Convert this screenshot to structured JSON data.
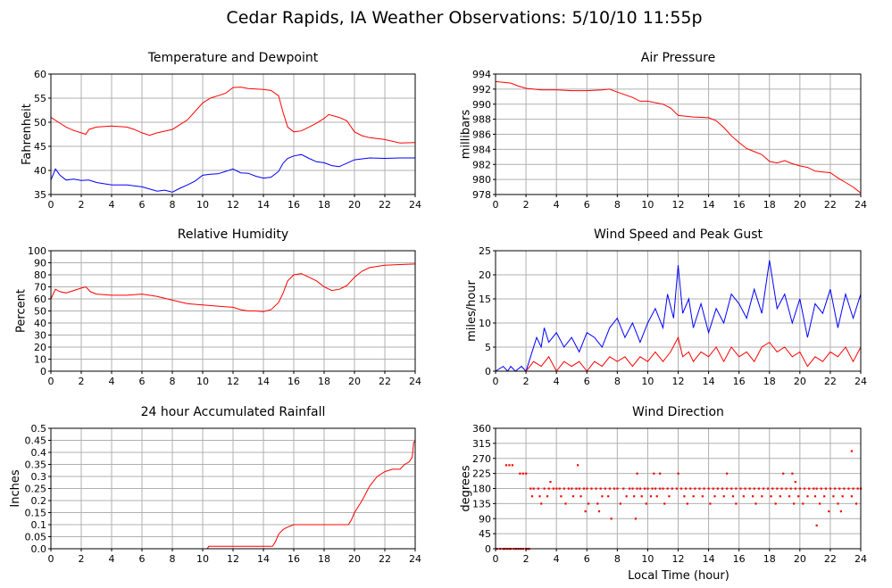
{
  "title": "Cedar Rapids, IA Weather Observations: 5/10/10 11:55p",
  "colors": {
    "red": "#ff0000",
    "blue": "#0000ff",
    "grid": "#b0b0b0",
    "frame": "#000000"
  },
  "chart_data": [
    {
      "type": "line",
      "title": "Temperature and Dewpoint",
      "xlabel": "",
      "ylabel": "Fahrenheit",
      "xlim": [
        0,
        24
      ],
      "ylim": [
        35,
        60
      ],
      "xticks": [
        0,
        2,
        4,
        6,
        8,
        10,
        12,
        14,
        16,
        18,
        20,
        22,
        24
      ],
      "yticks": [
        35,
        40,
        45,
        50,
        55,
        60
      ],
      "grid": true,
      "series": [
        {
          "color": "#ff0000",
          "x": [
            0,
            0.5,
            1,
            1.5,
            2,
            2.3,
            2.5,
            3,
            4,
            5,
            5.5,
            6,
            6.5,
            7,
            8,
            9,
            10,
            10.5,
            11,
            11.5,
            12,
            12.5,
            13,
            14,
            14.5,
            15,
            15.3,
            15.6,
            16,
            16.5,
            17,
            17.5,
            18,
            18.3,
            19,
            19.5,
            20,
            20.5,
            21,
            22,
            23,
            24
          ],
          "y": [
            51,
            50,
            49,
            48.3,
            47.8,
            47.5,
            48.5,
            49,
            49.2,
            49,
            48.5,
            47.8,
            47.3,
            47.8,
            48.5,
            50.5,
            54,
            55,
            55.5,
            56,
            57.2,
            57.3,
            57,
            56.8,
            56.6,
            55.5,
            52,
            49,
            48,
            48.2,
            49,
            49.8,
            50.8,
            51.6,
            51,
            50.3,
            48,
            47.2,
            46.8,
            46.4,
            45.7,
            45.8
          ]
        },
        {
          "color": "#0000ff",
          "x": [
            0,
            0.3,
            0.6,
            1,
            1.5,
            2,
            2.5,
            3,
            4,
            5,
            6,
            7,
            7.5,
            8,
            8.5,
            9,
            9.5,
            10,
            10.5,
            11,
            11.5,
            12,
            12.5,
            13,
            13.5,
            14,
            14.5,
            15,
            15.3,
            15.6,
            16,
            16.5,
            17,
            17.5,
            18,
            18.5,
            19,
            19.5,
            20,
            21,
            22,
            23,
            24
          ],
          "y": [
            38,
            40.3,
            39,
            38,
            38.2,
            37.9,
            38,
            37.5,
            37,
            37,
            36.6,
            35.7,
            35.9,
            35.5,
            36.3,
            37,
            37.8,
            39,
            39.2,
            39.3,
            39.8,
            40.3,
            39.5,
            39.4,
            38.8,
            38.4,
            38.6,
            39.8,
            41.5,
            42.5,
            43,
            43.3,
            42.5,
            41.8,
            41.6,
            41,
            40.8,
            41.5,
            42.2,
            42.6,
            42.5,
            42.6,
            42.6
          ]
        }
      ]
    },
    {
      "type": "line",
      "title": "Air Pressure",
      "xlabel": "",
      "ylabel": "millibars",
      "xlim": [
        0,
        24
      ],
      "ylim": [
        978,
        994
      ],
      "xticks": [
        0,
        2,
        4,
        6,
        8,
        10,
        12,
        14,
        16,
        18,
        20,
        22,
        24
      ],
      "yticks": [
        978,
        980,
        982,
        984,
        986,
        988,
        990,
        992,
        994
      ],
      "grid": true,
      "series": [
        {
          "color": "#ff0000",
          "x": [
            0,
            0.5,
            1,
            1.5,
            2,
            3,
            4,
            5,
            6,
            7,
            7.5,
            8,
            9,
            9.5,
            10,
            11,
            11.5,
            12,
            13,
            14,
            14.5,
            15,
            15.5,
            16,
            16.5,
            17,
            17.5,
            18,
            18.5,
            19,
            19.5,
            20,
            20.5,
            21,
            21.5,
            22,
            22.5,
            23,
            23.5,
            24
          ],
          "y": [
            993,
            992.9,
            992.8,
            992.4,
            992.1,
            991.9,
            991.9,
            991.8,
            991.8,
            991.9,
            992,
            991.6,
            990.9,
            990.4,
            990.4,
            990,
            989.5,
            988.5,
            988.3,
            988.2,
            987.8,
            986.9,
            985.8,
            984.9,
            984.1,
            983.7,
            983.3,
            982.4,
            982.2,
            982.5,
            982.1,
            981.8,
            981.6,
            981.1,
            981,
            980.9,
            980.2,
            979.6,
            979,
            978.2
          ]
        }
      ]
    },
    {
      "type": "line",
      "title": "Relative Humidity",
      "xlabel": "",
      "ylabel": "Percent",
      "xlim": [
        0,
        24
      ],
      "ylim": [
        0,
        100
      ],
      "xticks": [
        0,
        2,
        4,
        6,
        8,
        10,
        12,
        14,
        16,
        18,
        20,
        22,
        24
      ],
      "yticks": [
        0,
        10,
        20,
        30,
        40,
        50,
        60,
        70,
        80,
        90,
        100
      ],
      "grid": true,
      "series": [
        {
          "color": "#ff0000",
          "x": [
            0,
            0.3,
            0.6,
            1,
            1.5,
            2,
            2.3,
            2.6,
            3,
            4,
            5,
            6,
            6.5,
            7,
            8,
            9,
            10,
            11,
            12,
            12.5,
            13,
            13.5,
            14,
            14.5,
            15,
            15.3,
            15.6,
            16,
            16.5,
            17,
            17.5,
            18,
            18.5,
            19,
            19.5,
            20,
            20.5,
            21,
            22,
            23,
            24
          ],
          "y": [
            60,
            68,
            66,
            65,
            67,
            69,
            70,
            66,
            64,
            63,
            63,
            64,
            63,
            62,
            59,
            56,
            55,
            54,
            53,
            51,
            50,
            50,
            49.5,
            51,
            57,
            65,
            75,
            80,
            81,
            78,
            75,
            70,
            67,
            68,
            71,
            78,
            83,
            86,
            88,
            88.5,
            89
          ]
        }
      ]
    },
    {
      "type": "line",
      "title": "Wind Speed and Peak Gust",
      "xlabel": "",
      "ylabel": "miles/hour",
      "xlim": [
        0,
        24
      ],
      "ylim": [
        0,
        25
      ],
      "xticks": [
        0,
        2,
        4,
        6,
        8,
        10,
        12,
        14,
        16,
        18,
        20,
        22,
        24
      ],
      "yticks": [
        0,
        5,
        10,
        15,
        20,
        25
      ],
      "grid": true,
      "series": [
        {
          "color": "#0000ff",
          "x": [
            0,
            0.5,
            0.8,
            1,
            1.3,
            1.7,
            2,
            2.3,
            2.7,
            3,
            3.2,
            3.5,
            4,
            4.5,
            5,
            5.5,
            6,
            6.5,
            7,
            7.5,
            8,
            8.5,
            9,
            9.5,
            10,
            10.5,
            11,
            11.3,
            11.7,
            12,
            12.3,
            12.7,
            13,
            13.5,
            14,
            14.5,
            15,
            15.5,
            16,
            16.5,
            17,
            17.5,
            18,
            18.5,
            19,
            19.5,
            20,
            20.5,
            21,
            21.5,
            22,
            22.5,
            23,
            23.5,
            24
          ],
          "y": [
            0,
            1,
            0,
            1,
            0,
            1,
            0,
            3,
            7,
            5,
            9,
            6,
            8,
            5,
            7,
            4,
            8,
            7,
            5,
            9,
            11,
            7,
            10,
            6,
            10,
            13,
            9,
            16,
            11,
            22,
            12,
            15,
            9,
            14,
            8,
            13,
            10,
            16,
            14,
            11,
            17,
            12,
            23,
            13,
            16,
            10,
            15,
            7,
            14,
            12,
            17,
            9,
            16,
            11,
            16
          ]
        },
        {
          "color": "#ff0000",
          "x": [
            0,
            2,
            2.5,
            3,
            3.5,
            4,
            4.5,
            5,
            5.5,
            6,
            6.5,
            7,
            7.5,
            8,
            8.5,
            9,
            9.5,
            10,
            10.5,
            11,
            11.5,
            12,
            12.3,
            12.7,
            13,
            13.5,
            14,
            14.5,
            15,
            15.5,
            16,
            16.5,
            17,
            17.5,
            18,
            18.5,
            19,
            19.5,
            20,
            20.5,
            21,
            21.5,
            22,
            22.5,
            23,
            23.5,
            24
          ],
          "y": [
            0,
            0,
            2,
            1,
            3,
            0,
            2,
            1,
            2,
            0,
            2,
            1,
            3,
            2,
            3,
            1,
            3,
            2,
            4,
            2,
            4,
            7,
            3,
            4,
            2,
            4,
            3,
            5,
            2,
            5,
            3,
            4,
            2,
            5,
            6,
            4,
            5,
            3,
            4,
            1,
            3,
            2,
            4,
            3,
            5,
            2,
            5
          ]
        }
      ]
    },
    {
      "type": "line",
      "title": "24 hour Accumulated Rainfall",
      "xlabel": "",
      "ylabel": "Inches",
      "xlim": [
        0,
        24
      ],
      "ylim": [
        0,
        0.5
      ],
      "xticks": [
        0,
        2,
        4,
        6,
        8,
        10,
        12,
        14,
        16,
        18,
        20,
        22,
        24
      ],
      "yticks": [
        0.0,
        0.05,
        0.1,
        0.15,
        0.2,
        0.25,
        0.3,
        0.35,
        0.4,
        0.45,
        0.5
      ],
      "grid": true,
      "series": [
        {
          "color": "#ff0000",
          "x": [
            0,
            10.3,
            10.4,
            14.6,
            14.8,
            15,
            15.3,
            15.6,
            16,
            16.5,
            19.6,
            19.8,
            20,
            20.5,
            21,
            21.5,
            22,
            22.5,
            23,
            23.3,
            23.6,
            23.8,
            23.9,
            24
          ],
          "y": [
            0,
            0,
            0.01,
            0.01,
            0.03,
            0.06,
            0.08,
            0.09,
            0.1,
            0.1,
            0.1,
            0.12,
            0.15,
            0.2,
            0.26,
            0.3,
            0.32,
            0.33,
            0.33,
            0.35,
            0.36,
            0.38,
            0.44,
            0.45
          ]
        }
      ]
    },
    {
      "type": "scatter",
      "title": "Wind Direction",
      "xlabel": "Local Time (hour)",
      "ylabel": "degrees",
      "xlim": [
        0,
        24
      ],
      "ylim": [
        0,
        360
      ],
      "xticks": [
        0,
        2,
        4,
        6,
        8,
        10,
        12,
        14,
        16,
        18,
        20,
        22,
        24
      ],
      "yticks": [
        0,
        45,
        90,
        135,
        180,
        225,
        270,
        315,
        360
      ],
      "grid": true,
      "series": [
        {
          "color": "#ff0000",
          "x": [
            0.1,
            0.3,
            0.5,
            0.6,
            0.75,
            0.9,
            1.0,
            1.2,
            1.35,
            1.5,
            1.65,
            1.8,
            2.0,
            2.2,
            0.7,
            0.9,
            1.1,
            1.6,
            1.8,
            2.0,
            2.3,
            2.5,
            2.8,
            3.2,
            3.5,
            3.8,
            4.0,
            4.2,
            4.5,
            4.8,
            5.0,
            5.3,
            5.5,
            5.8,
            6.0,
            6.3,
            6.6,
            6.9,
            7.2,
            7.5,
            7.8,
            8.0,
            8.4,
            8.8,
            9.0,
            9.3,
            9.5,
            9.8,
            10.0,
            10.3,
            10.5,
            10.8,
            11.0,
            11.3,
            11.6,
            11.9,
            12.2,
            12.5,
            12.8,
            13.1,
            13.4,
            13.7,
            14.0,
            14.3,
            14.6,
            14.9,
            15.2,
            15.5,
            15.8,
            16.1,
            16.4,
            16.7,
            17.0,
            17.3,
            17.6,
            17.9,
            18.2,
            18.5,
            18.8,
            19.1,
            19.4,
            19.7,
            20.0,
            20.3,
            20.6,
            20.9,
            21.1,
            21.4,
            21.7,
            22.0,
            22.3,
            22.6,
            22.9,
            23.2,
            23.5,
            23.8,
            24.0,
            2.4,
            2.9,
            3.4,
            4.3,
            5.1,
            5.6,
            7.0,
            7.4,
            8.6,
            9.1,
            9.6,
            10.2,
            10.6,
            11.4,
            12.4,
            13.0,
            13.6,
            14.4,
            15.0,
            15.6,
            16.3,
            16.9,
            17.5,
            18.1,
            18.7,
            19.3,
            19.9,
            20.5,
            21.0,
            21.6,
            22.2,
            22.8,
            23.4,
            3.0,
            4.6,
            6.1,
            6.7,
            8.2,
            9.9,
            11.1,
            12.6,
            14.1,
            15.8,
            17.1,
            18.4,
            19.6,
            20.2,
            21.3,
            22.5,
            23.7,
            5.4,
            9.3,
            10.4,
            10.8,
            12.0,
            15.2,
            18.9,
            19.5,
            19.7,
            7.6,
            9.2,
            21.1,
            21.9,
            23.4,
            2.1,
            3.6,
            5.9,
            6.8,
            22.7
          ],
          "y": [
            0,
            0,
            0,
            0,
            0,
            0,
            0,
            0,
            0,
            0,
            0,
            0,
            0,
            0,
            250,
            250,
            250,
            225,
            225,
            225,
            180,
            180,
            180,
            180,
            180,
            180,
            180,
            180,
            180,
            180,
            180,
            180,
            180,
            180,
            180,
            180,
            180,
            180,
            180,
            180,
            180,
            180,
            180,
            180,
            180,
            180,
            180,
            180,
            180,
            180,
            180,
            180,
            180,
            180,
            180,
            180,
            180,
            180,
            180,
            180,
            180,
            180,
            180,
            180,
            180,
            180,
            180,
            180,
            180,
            180,
            180,
            180,
            180,
            180,
            180,
            180,
            180,
            180,
            180,
            180,
            180,
            180,
            180,
            180,
            180,
            180,
            180,
            180,
            180,
            180,
            180,
            180,
            180,
            180,
            180,
            180,
            180,
            157,
            157,
            157,
            157,
            157,
            157,
            157,
            157,
            157,
            157,
            157,
            157,
            157,
            157,
            157,
            157,
            157,
            157,
            157,
            157,
            157,
            157,
            157,
            157,
            157,
            157,
            157,
            157,
            157,
            157,
            157,
            157,
            157,
            135,
            135,
            135,
            135,
            135,
            135,
            135,
            135,
            135,
            135,
            135,
            135,
            135,
            135,
            135,
            135,
            135,
            250,
            225,
            225,
            225,
            225,
            225,
            225,
            225,
            200,
            90,
            90,
            70,
            112,
            292,
            0,
            200,
            112,
            112,
            112
          ]
        }
      ]
    }
  ]
}
